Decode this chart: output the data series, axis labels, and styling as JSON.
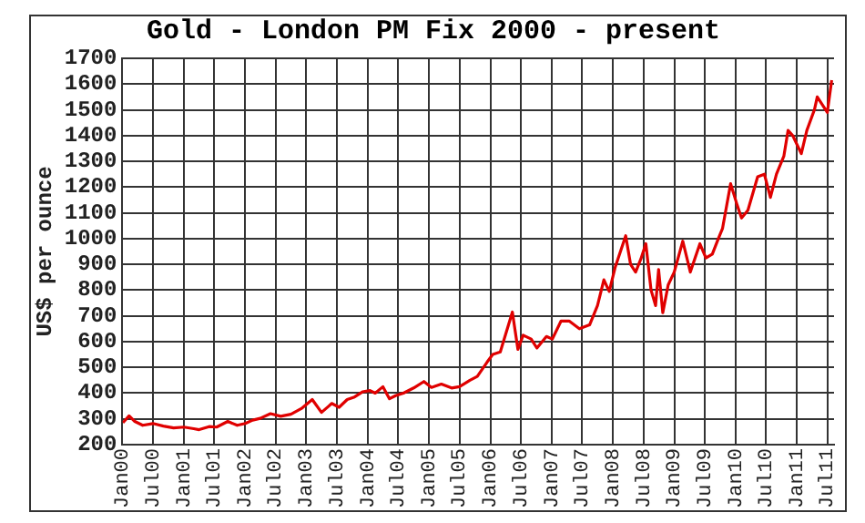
{
  "chart_data": {
    "type": "line",
    "title": "Gold - London PM Fix 2000 - present",
    "ylabel": "US$ per ounce",
    "x": [
      "2000-01-04",
      "2000-02-10",
      "2000-03-15",
      "2000-05-01",
      "2000-07-01",
      "2000-09-01",
      "2000-11-01",
      "2001-01-02",
      "2001-03-01",
      "2001-04-02",
      "2001-06-01",
      "2001-07-15",
      "2001-09-20",
      "2001-11-15",
      "2002-01-02",
      "2002-02-15",
      "2002-04-01",
      "2002-06-01",
      "2002-08-01",
      "2002-10-01",
      "2002-12-02",
      "2003-02-05",
      "2003-04-01",
      "2003-05-15",
      "2003-06-01",
      "2003-07-15",
      "2003-09-01",
      "2003-10-15",
      "2003-12-01",
      "2004-01-15",
      "2004-02-15",
      "2004-04-01",
      "2004-05-10",
      "2004-06-15",
      "2004-08-01",
      "2004-10-01",
      "2004-12-01",
      "2005-01-15",
      "2005-03-15",
      "2005-05-15",
      "2005-07-01",
      "2005-09-01",
      "2005-10-15",
      "2005-12-12",
      "2006-01-15",
      "2006-03-01",
      "2006-05-12",
      "2006-06-14",
      "2006-07-15",
      "2006-09-01",
      "2006-10-05",
      "2006-12-01",
      "2007-01-05",
      "2007-02-26",
      "2007-04-15",
      "2007-06-15",
      "2007-08-15",
      "2007-10-01",
      "2007-11-08",
      "2007-12-10",
      "2008-01-15",
      "2008-03-17",
      "2008-04-15",
      "2008-05-15",
      "2008-06-15",
      "2008-07-15",
      "2008-08-15",
      "2008-09-11",
      "2008-09-29",
      "2008-10-24",
      "2008-11-25",
      "2008-12-31",
      "2009-02-20",
      "2009-04-06",
      "2009-06-02",
      "2009-07-08",
      "2009-08-15",
      "2009-09-20",
      "2009-10-15",
      "2009-12-02",
      "2010-01-10",
      "2010-02-05",
      "2010-03-15",
      "2010-05-12",
      "2010-06-21",
      "2010-07-27",
      "2010-09-01",
      "2010-10-15",
      "2010-11-09",
      "2010-12-07",
      "2011-01-27",
      "2011-03-01",
      "2011-04-15",
      "2011-05-02",
      "2011-06-01",
      "2011-07-01",
      "2011-07-27"
    ],
    "values": [
      285,
      312,
      290,
      275,
      282,
      272,
      265,
      268,
      262,
      258,
      270,
      268,
      290,
      275,
      282,
      295,
      302,
      320,
      310,
      318,
      340,
      375,
      325,
      350,
      360,
      345,
      375,
      385,
      405,
      410,
      400,
      425,
      378,
      390,
      400,
      420,
      445,
      422,
      435,
      420,
      425,
      450,
      465,
      520,
      550,
      560,
      715,
      570,
      625,
      610,
      575,
      620,
      610,
      680,
      680,
      650,
      665,
      740,
      840,
      795,
      890,
      1011,
      900,
      870,
      920,
      980,
      800,
      740,
      880,
      712,
      820,
      870,
      990,
      870,
      980,
      925,
      940,
      1000,
      1040,
      1213,
      1130,
      1080,
      1110,
      1240,
      1250,
      1160,
      1250,
      1320,
      1420,
      1400,
      1330,
      1420,
      1500,
      1550,
      1520,
      1490,
      1615
    ],
    "color": "#e00000",
    "xlim": [
      "2000-01-01",
      "2011-08-10"
    ],
    "xticks": [
      {
        "value": "2000-01-01",
        "label": "Jan00"
      },
      {
        "value": "2000-07-01",
        "label": "Jul00"
      },
      {
        "value": "2001-01-01",
        "label": "Jan01"
      },
      {
        "value": "2001-07-01",
        "label": "Jul01"
      },
      {
        "value": "2002-01-01",
        "label": "Jan02"
      },
      {
        "value": "2002-07-01",
        "label": "Jul02"
      },
      {
        "value": "2003-01-01",
        "label": "Jan03"
      },
      {
        "value": "2003-07-01",
        "label": "Jul03"
      },
      {
        "value": "2004-01-01",
        "label": "Jan04"
      },
      {
        "value": "2004-07-01",
        "label": "Jul04"
      },
      {
        "value": "2005-01-01",
        "label": "Jan05"
      },
      {
        "value": "2005-07-01",
        "label": "Jul05"
      },
      {
        "value": "2006-01-01",
        "label": "Jan06"
      },
      {
        "value": "2006-07-01",
        "label": "Jul06"
      },
      {
        "value": "2007-01-01",
        "label": "Jan07"
      },
      {
        "value": "2007-07-01",
        "label": "Jul07"
      },
      {
        "value": "2008-01-01",
        "label": "Jan08"
      },
      {
        "value": "2008-07-01",
        "label": "Jul08"
      },
      {
        "value": "2009-01-01",
        "label": "Jan09"
      },
      {
        "value": "2009-07-01",
        "label": "Jul09"
      },
      {
        "value": "2010-01-01",
        "label": "Jan10"
      },
      {
        "value": "2010-07-01",
        "label": "Jul10"
      },
      {
        "value": "2011-01-01",
        "label": "Jan11"
      },
      {
        "value": "2011-07-01",
        "label": "Jul11"
      }
    ],
    "ylim": [
      200,
      1700
    ],
    "yticks": [
      200,
      300,
      400,
      500,
      600,
      700,
      800,
      900,
      1000,
      1100,
      1200,
      1300,
      1400,
      1500,
      1600,
      1700
    ],
    "grid": true,
    "legend": false,
    "marker": "none",
    "line_style": "solid"
  }
}
